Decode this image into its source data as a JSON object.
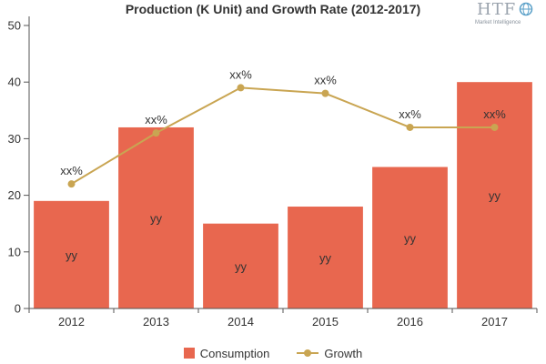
{
  "chart_data": {
    "type": "bar",
    "title": "Production (K Unit) and Growth Rate (2012-2017)",
    "categories": [
      "2012",
      "2013",
      "2014",
      "2015",
      "2016",
      "2017"
    ],
    "series": [
      {
        "name": "Consumption",
        "type": "bar",
        "values": [
          19,
          32,
          15,
          18,
          25,
          40
        ],
        "labels": [
          "yy",
          "yy",
          "yy",
          "yy",
          "yy",
          "yy"
        ],
        "color": "#e8674f"
      },
      {
        "name": "Growth",
        "type": "line",
        "values": [
          22,
          31,
          39,
          38,
          32,
          32
        ],
        "labels": [
          "xx%",
          "xx%",
          "xx%",
          "xx%",
          "xx%",
          "xx%"
        ],
        "color": "#c9a552"
      }
    ],
    "ylim": [
      0,
      50
    ],
    "yticks": [
      0,
      10,
      20,
      30,
      40,
      50
    ],
    "xlabel": "",
    "ylabel": "",
    "grid": false,
    "legend_position": "bottom"
  },
  "watermark": {
    "text": "HTF",
    "subtext": "Market Intelligence"
  }
}
